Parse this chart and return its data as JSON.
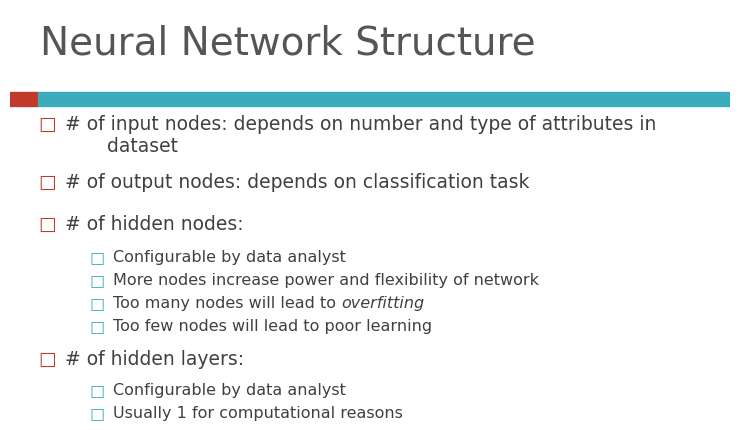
{
  "title": "Neural Network Structure",
  "title_color": "#555555",
  "title_fontsize": 28,
  "bg_color": "#ffffff",
  "bar_color_red": "#c0392b",
  "bar_color_teal": "#3aacbc",
  "bullet_color": "#404040",
  "bullet_l1_color": "#c0392b",
  "bullet_l2_color": "#3aacbc",
  "content": [
    {
      "level": 1,
      "text": "# of input nodes: depends on number and type of attributes in\n       dataset",
      "has_italic": false
    },
    {
      "level": 1,
      "text": "# of output nodes: depends on classification task",
      "has_italic": false
    },
    {
      "level": 1,
      "text": "# of hidden nodes:",
      "has_italic": false
    },
    {
      "level": 2,
      "text": "Configurable by data analyst",
      "has_italic": false
    },
    {
      "level": 2,
      "text": "More nodes increase power and flexibility of network",
      "has_italic": false
    },
    {
      "level": 2,
      "text": "Too many nodes will lead to ",
      "italic_text": "overfitting",
      "has_italic": true
    },
    {
      "level": 2,
      "text": "Too few nodes will lead to poor learning",
      "has_italic": false
    },
    {
      "level": 1,
      "text": "# of hidden layers:",
      "has_italic": false
    },
    {
      "level": 2,
      "text": "Configurable by data analyst",
      "has_italic": false
    },
    {
      "level": 2,
      "text": "Usually 1 for computational reasons",
      "has_italic": false
    }
  ]
}
